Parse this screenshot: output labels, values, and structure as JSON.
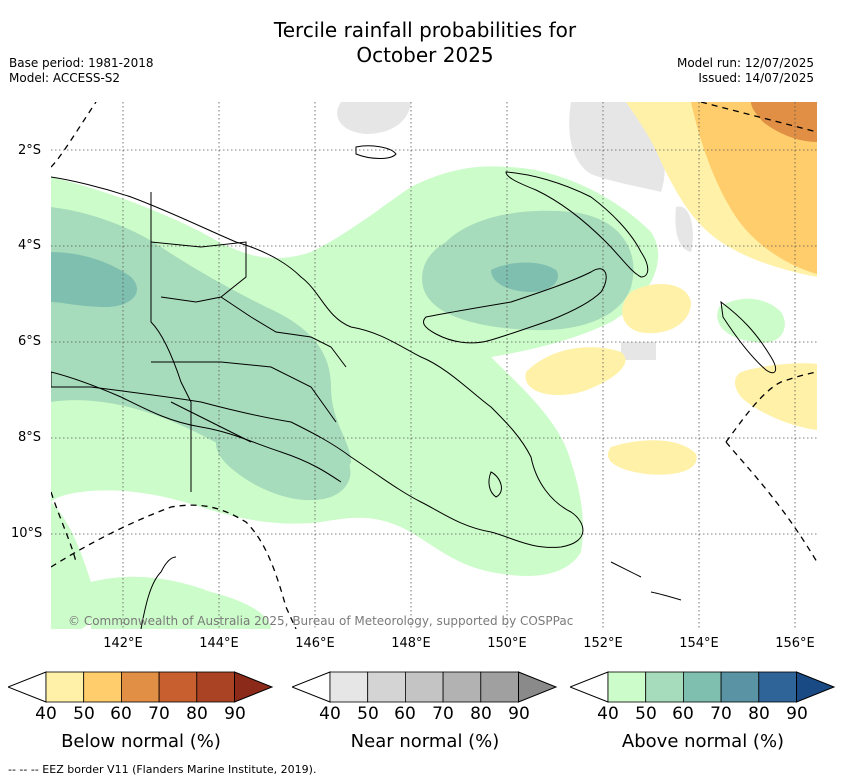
{
  "title_line1": "Tercile rainfall probabilities for",
  "title_line2": "October 2025",
  "base_period": "Base period: 1981-2018",
  "model": "Model: ACCESS-S2",
  "model_run": "Model run: 12/07/2025",
  "issued": "Issued: 14/07/2025",
  "lat_labels": [
    "2°S",
    "4°S",
    "6°S",
    "8°S",
    "10°S"
  ],
  "lon_labels": [
    "142°E",
    "144°E",
    "146°E",
    "148°E",
    "150°E",
    "152°E",
    "154°E",
    "156°E"
  ],
  "copyright": "© Commonwealth of Australia 2025, Bureau of Meteorology, supported by COSPPac",
  "colorbars": [
    {
      "title": "Below normal (%)",
      "ticks": [
        "40",
        "50",
        "60",
        "70",
        "80",
        "90"
      ],
      "colors": [
        "#fff1a8",
        "#ffcd6b",
        "#e08f45",
        "#c85f2e",
        "#aa4324",
        "#8b2a18"
      ]
    },
    {
      "title": "Near normal (%)",
      "ticks": [
        "40",
        "50",
        "60",
        "70",
        "80",
        "90"
      ],
      "colors": [
        "#e6e6e6",
        "#d4d4d4",
        "#c4c4c4",
        "#b2b2b2",
        "#a0a0a0",
        "#8a8a8a"
      ]
    },
    {
      "title": "Above normal (%)",
      "ticks": [
        "40",
        "50",
        "60",
        "70",
        "80",
        "90"
      ],
      "colors": [
        "#ccfcc9",
        "#a6dbbb",
        "#7fbfb0",
        "#5a93a3",
        "#2f6499",
        "#1a4a84"
      ]
    }
  ],
  "footer": "--  --  -- EEZ border V11 (Flanders Marine Institute, 2019)."
}
